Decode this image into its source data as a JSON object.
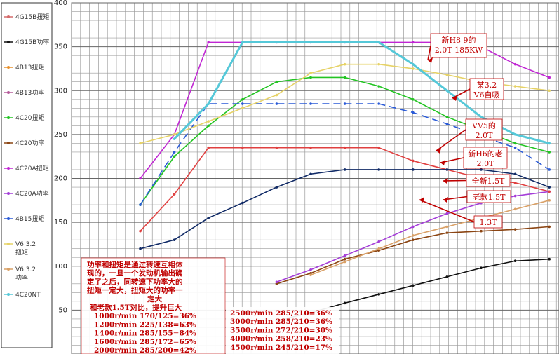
{
  "chart_data": {
    "type": "line",
    "ylim": [
      0,
      400
    ],
    "yticks": [
      50,
      100,
      150,
      200,
      250,
      300,
      350,
      400
    ],
    "x": [
      1000,
      1200,
      1400,
      1600,
      2000,
      2500,
      3000,
      3500,
      4000,
      4500,
      5000,
      5500,
      6000
    ],
    "grid": true,
    "legend_position": "left",
    "series": [
      {
        "name": "4G15B扭矩",
        "color": "#d46a6a",
        "values": [
          null,
          null,
          null,
          null,
          null,
          null,
          null,
          null,
          null,
          null,
          null,
          null,
          null
        ]
      },
      {
        "name": "4G15B功率",
        "color": "#111111",
        "values": [
          null,
          null,
          null,
          null,
          38,
          47,
          58,
          68,
          78,
          88,
          98,
          106,
          108
        ]
      },
      {
        "name": "4B13扭矩",
        "color": "#e8902a",
        "values": [
          null,
          null,
          null,
          null,
          null,
          null,
          null,
          null,
          null,
          null,
          null,
          null,
          null
        ]
      },
      {
        "name": "4B13功率",
        "color": "#b55a9a",
        "values": [
          null,
          null,
          null,
          null,
          null,
          null,
          null,
          null,
          null,
          null,
          null,
          null,
          null
        ]
      },
      {
        "name": "4C20扭矩",
        "color": "#22c422",
        "values": [
          170,
          225,
          260,
          290,
          310,
          315,
          315,
          305,
          290,
          270,
          255,
          240,
          230
        ]
      },
      {
        "name": "4C20功率",
        "color": "#8b4513",
        "values": [
          null,
          null,
          null,
          null,
          80,
          92,
          108,
          118,
          130,
          138,
          140,
          142,
          145
        ]
      },
      {
        "name": "4C20A扭矩",
        "color": "#c026d3",
        "values": [
          200,
          250,
          355,
          355,
          355,
          355,
          355,
          355,
          355,
          355,
          350,
          330,
          315
        ]
      },
      {
        "name": "4C20A功率",
        "color": "#a43dd8",
        "values": [
          null,
          null,
          null,
          null,
          82,
          96,
          112,
          128,
          145,
          160,
          172,
          180,
          185
        ]
      },
      {
        "name": "4B15扭矩",
        "color": "#2b5bd7",
        "values": [
          170,
          230,
          285,
          285,
          285,
          285,
          285,
          285,
          275,
          262,
          248,
          235,
          210
        ]
      },
      {
        "name": "V6 3.2扭矩",
        "color": "#e6d266",
        "values": [
          240,
          250,
          265,
          280,
          295,
          320,
          330,
          330,
          325,
          318,
          310,
          305,
          300
        ]
      },
      {
        "name": "V6 3.2功率",
        "color": "#d9a066",
        "values": [
          null,
          null,
          null,
          null,
          null,
          90,
          105,
          120,
          135,
          145,
          155,
          165,
          175
        ]
      },
      {
        "name": "4C20NT",
        "color": "#55c8d8",
        "values": [
          null,
          245,
          285,
          355,
          355,
          355,
          355,
          355,
          330,
          300,
          270,
          250,
          240
        ]
      },
      {
        "name": "老款1.5T",
        "color": "#e04040",
        "values": [
          140,
          182,
          235,
          235,
          235,
          235,
          235,
          235,
          220,
          210,
          200,
          195,
          185
        ]
      },
      {
        "name": "全新1.5T",
        "color": "#102a66",
        "values": [
          120,
          130,
          155,
          172,
          190,
          205,
          210,
          210,
          210,
          210,
          210,
          205,
          190
        ]
      }
    ],
    "annotations": [
      {
        "text": "新H8 9的",
        "line": 1
      },
      {
        "text": "2.0T 185KW",
        "line": 2
      },
      {
        "text": "某3.2",
        "line": 1
      },
      {
        "text": "V6自吸",
        "line": 2
      },
      {
        "text": "VV5的",
        "line": 1
      },
      {
        "text": "2.0T",
        "line": 2
      },
      {
        "text": "新H6的老",
        "line": 1
      },
      {
        "text": "2.0T",
        "line": 2
      },
      {
        "text": "全新1.5T",
        "line": 1
      },
      {
        "text": "老款1.5T",
        "line": 1
      },
      {
        "text": "1.3T",
        "line": 1
      }
    ],
    "note_lines": [
      "功率和扭矩是通过转速互相体",
      "现的，一旦一个发动机输出确",
      "定了之后，同转速下功率大的",
      "扭矩一定大，扭矩大的功率一",
      "定大",
      "和老款1.5T对比，提升巨大",
      "1000r/min 170/125=36%",
      "1200r/min 225/138=63%",
      "1400r/min 285/155=84%",
      "1600r/min 285/172=65%",
      "2000r/min 285/200=42%"
    ],
    "note_lines_right": [
      "2500r/min 285/210=36%",
      "3000r/min 285/210=36%",
      "3500r/min 272/210=30%",
      "4000r/min 258/210=23%",
      "4500r/min 245/210=17%"
    ]
  }
}
